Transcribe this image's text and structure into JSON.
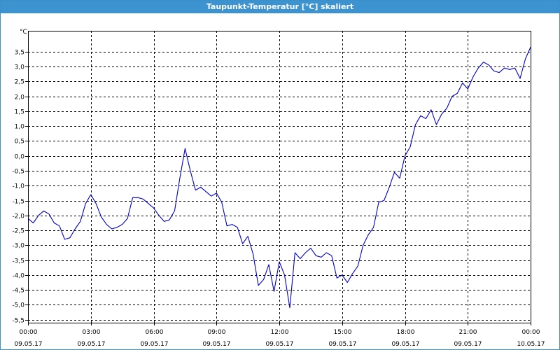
{
  "window": {
    "title": "Taupunkt-Temperatur [°C] skaliert"
  },
  "colors": {
    "titlebar": "#3d93cf",
    "line": "#0000cc",
    "grid": "#000000"
  },
  "chart_data": {
    "type": "line",
    "title": "Taupunkt-Temperatur [°C] skaliert",
    "ylabel": "°C",
    "xlabel": "",
    "grid": true,
    "ylim": [
      -5.6,
      4.2
    ],
    "y_ticks": [
      3.5,
      3.0,
      2.5,
      2.0,
      1.5,
      1.0,
      0.5,
      0.0,
      -0.5,
      -1.0,
      -1.5,
      -2.0,
      -2.5,
      -3.0,
      -3.5,
      -4.0,
      -4.5,
      -5.0,
      -5.5
    ],
    "y_tick_labels": [
      "3,5",
      "3,0",
      "2,5",
      "2,0",
      "1,5",
      "1,0",
      "0,5",
      "0,0",
      "-0,5",
      "-1,0",
      "-1,5",
      "-2,0",
      "-2,5",
      "-3,0",
      "-3,5",
      "-4,0",
      "-4,5",
      "-5,0",
      "-5,5"
    ],
    "x_ticks": [
      {
        "time": "00:00",
        "date": "09.05.17"
      },
      {
        "time": "03:00",
        "date": "09.05.17"
      },
      {
        "time": "06:00",
        "date": "09.05.17"
      },
      {
        "time": "09:00",
        "date": "09.05.17"
      },
      {
        "time": "12:00",
        "date": "09.05.17"
      },
      {
        "time": "15:00",
        "date": "09.05.17"
      },
      {
        "time": "18:00",
        "date": "09.05.17"
      },
      {
        "time": "21:00",
        "date": "09.05.17"
      },
      {
        "time": "00:00",
        "date": "10.05.17"
      }
    ],
    "series": [
      {
        "x_hours": [
          0,
          0.25,
          0.5,
          0.75,
          1.0,
          1.25,
          1.5,
          1.75,
          2.0,
          2.25,
          2.5,
          2.75,
          3.0,
          3.25,
          3.5,
          3.75,
          4.0,
          4.25,
          4.5,
          4.75,
          5.0,
          5.25,
          5.5,
          5.75,
          6.0,
          6.25,
          6.5,
          6.75,
          7.0,
          7.25,
          7.5,
          7.75,
          8.0,
          8.25,
          8.5,
          8.75,
          9.0,
          9.25,
          9.5,
          9.75,
          10.0,
          10.25,
          10.5,
          10.75,
          11.0,
          11.25,
          11.5,
          11.75,
          12.0,
          12.25,
          12.5,
          12.75,
          13.0,
          13.25,
          13.5,
          13.75,
          14.0,
          14.25,
          14.5,
          14.75,
          15.0,
          15.25,
          15.5,
          15.75,
          16.0,
          16.25,
          16.5,
          16.75,
          17.0,
          17.25,
          17.5,
          17.75,
          18.0,
          18.25,
          18.5,
          18.75,
          19.0,
          19.25,
          19.5,
          19.75,
          20.0,
          20.25,
          20.5,
          20.75,
          21.0,
          21.25,
          21.5,
          21.75,
          22.0,
          22.25,
          22.5,
          22.75,
          23.0,
          23.25,
          23.5,
          23.75,
          24.0
        ],
        "y": [
          -2.1,
          -2.25,
          -2.0,
          -1.85,
          -1.95,
          -2.25,
          -2.35,
          -2.8,
          -2.75,
          -2.45,
          -2.2,
          -1.6,
          -1.3,
          -1.6,
          -2.05,
          -2.3,
          -2.45,
          -2.4,
          -2.3,
          -2.1,
          -1.4,
          -1.4,
          -1.45,
          -1.6,
          -1.75,
          -2.0,
          -2.2,
          -2.15,
          -1.85,
          -0.75,
          0.25,
          -0.5,
          -1.15,
          -1.05,
          -1.2,
          -1.35,
          -1.25,
          -1.55,
          -2.35,
          -2.3,
          -2.4,
          -2.95,
          -2.7,
          -3.3,
          -4.35,
          -4.15,
          -3.65,
          -4.55,
          -3.55,
          -4.0,
          -5.1,
          -3.25,
          -3.45,
          -3.25,
          -3.1,
          -3.35,
          -3.4,
          -3.25,
          -3.35,
          -4.1,
          -4.0,
          -4.25,
          -3.95,
          -3.7,
          -3.0,
          -2.65,
          -2.4,
          -1.55,
          -1.5,
          -1.05,
          -0.55,
          -0.75,
          0.0,
          0.3,
          1.05,
          1.35,
          1.25,
          1.55,
          1.05,
          1.4,
          1.6,
          2.0,
          2.1,
          2.45,
          2.25,
          2.65,
          2.95,
          3.15,
          3.05,
          2.85,
          2.8,
          2.95,
          2.9,
          2.95,
          2.6,
          3.25,
          3.65
        ]
      }
    ]
  }
}
